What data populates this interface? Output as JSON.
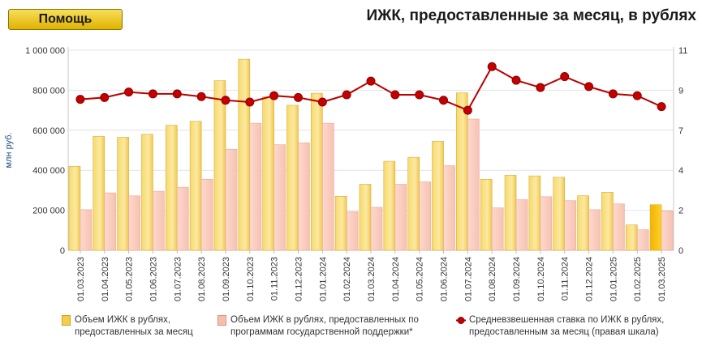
{
  "help_button": "Помощь",
  "title": "ИЖК, предоставленные за месяц, в рублях",
  "chart_data": {
    "type": "bar",
    "ylabel": "млн руб.",
    "ylim": [
      0,
      1000000
    ],
    "y2lim": [
      0,
      11
    ],
    "y_ticks": [
      "0",
      "200 000",
      "400 000",
      "600 000",
      "800 000",
      "1 000 000"
    ],
    "y2_ticks": [
      "0",
      "2",
      "4",
      "7",
      "9",
      "11"
    ],
    "categories": [
      "01.03.2023",
      "01.04.2023",
      "01.05.2023",
      "01.06.2023",
      "01.07.2023",
      "01.08.2023",
      "01.09.2023",
      "01.10.2023",
      "01.11.2023",
      "01.12.2023",
      "01.01.2024",
      "01.02.2024",
      "01.03.2024",
      "01.04.2024",
      "01.05.2024",
      "01.06.2024",
      "01.07.2024",
      "01.08.2024",
      "01.09.2024",
      "01.10.2024",
      "01.11.2024",
      "01.12.2024",
      "01.01.2025",
      "01.02.2025",
      "01.03.2025"
    ],
    "series": [
      {
        "name": "Объем ИЖК в рублях, предоставленных за месяц",
        "axis": "left",
        "kind": "bar",
        "color": "#f5cd4a",
        "values": [
          420000,
          570000,
          565000,
          580000,
          625000,
          645000,
          848000,
          955000,
          768000,
          725000,
          785000,
          270000,
          330000,
          445000,
          465000,
          545000,
          787000,
          355000,
          375000,
          372000,
          365000,
          273000,
          290000,
          127000,
          228000
        ]
      },
      {
        "name": "Объем ИЖК в рублях, предоставленных по программам государственной поддержки*",
        "axis": "left",
        "kind": "bar",
        "color": "#f5bfae",
        "values": [
          203000,
          287000,
          272000,
          295000,
          315000,
          355000,
          505000,
          635000,
          528000,
          537000,
          635000,
          193000,
          215000,
          330000,
          342000,
          423000,
          656000,
          212000,
          253000,
          268000,
          248000,
          203000,
          232000,
          103000,
          197000
        ]
      },
      {
        "name": "Средневзвешенная ставка по ИЖК в рублях, предоставленным за месяц (правая шкала)",
        "axis": "right",
        "kind": "line",
        "color": "#b50000",
        "values": [
          8.3,
          8.4,
          8.7,
          8.6,
          8.6,
          8.45,
          8.25,
          8.15,
          8.5,
          8.4,
          8.15,
          8.55,
          9.3,
          8.55,
          8.55,
          8.25,
          7.7,
          10.1,
          9.35,
          8.95,
          9.55,
          9.0,
          8.6,
          8.5,
          7.9
        ]
      }
    ],
    "grid": true,
    "legend_position": "bottom",
    "highlight_last": true
  }
}
